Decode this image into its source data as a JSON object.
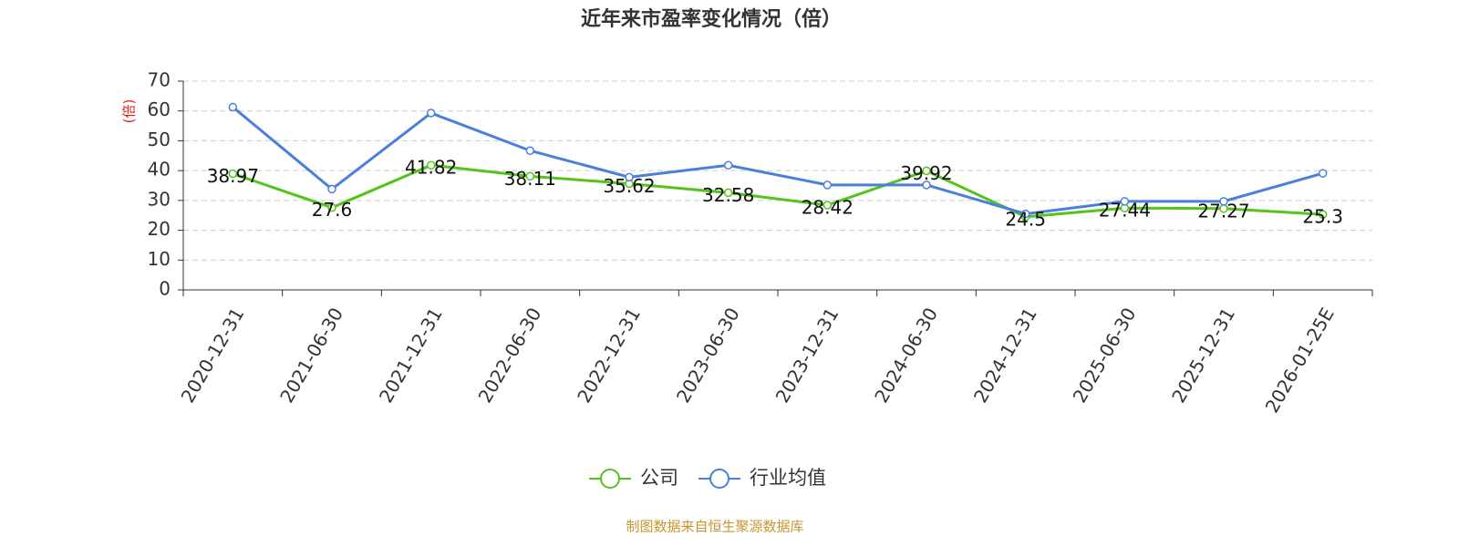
{
  "chart_data": {
    "type": "line",
    "title": "近年来市盈率变化情况（倍）",
    "y_label": "(倍)",
    "source": "制图数据来自恒生聚源数据库",
    "categories": [
      "2020-12-31",
      "2021-06-30",
      "2021-12-31",
      "2022-06-30",
      "2022-12-31",
      "2023-06-30",
      "2023-12-31",
      "2024-06-30",
      "2024-12-31",
      "2025-06-30",
      "2025-12-31",
      "2026-01-25E"
    ],
    "series": [
      {
        "name": "公司",
        "color": "#52c41a",
        "values": [
          38.97,
          27.6,
          41.82,
          38.11,
          35.62,
          32.58,
          28.42,
          39.92,
          24.5,
          27.44,
          27.27,
          25.3
        ],
        "show_labels": true
      },
      {
        "name": "行业均值",
        "color": "#4a7fdc",
        "values": [
          61.3,
          33.8,
          59.3,
          46.7,
          37.8,
          41.8,
          35.2,
          35.2,
          25.5,
          29.7,
          29.7,
          39.1
        ],
        "show_labels": false
      }
    ],
    "ylim": [
      0,
      70
    ],
    "yticks": [
      0,
      10,
      20,
      30,
      40,
      50,
      60,
      70
    ],
    "grid": true
  }
}
